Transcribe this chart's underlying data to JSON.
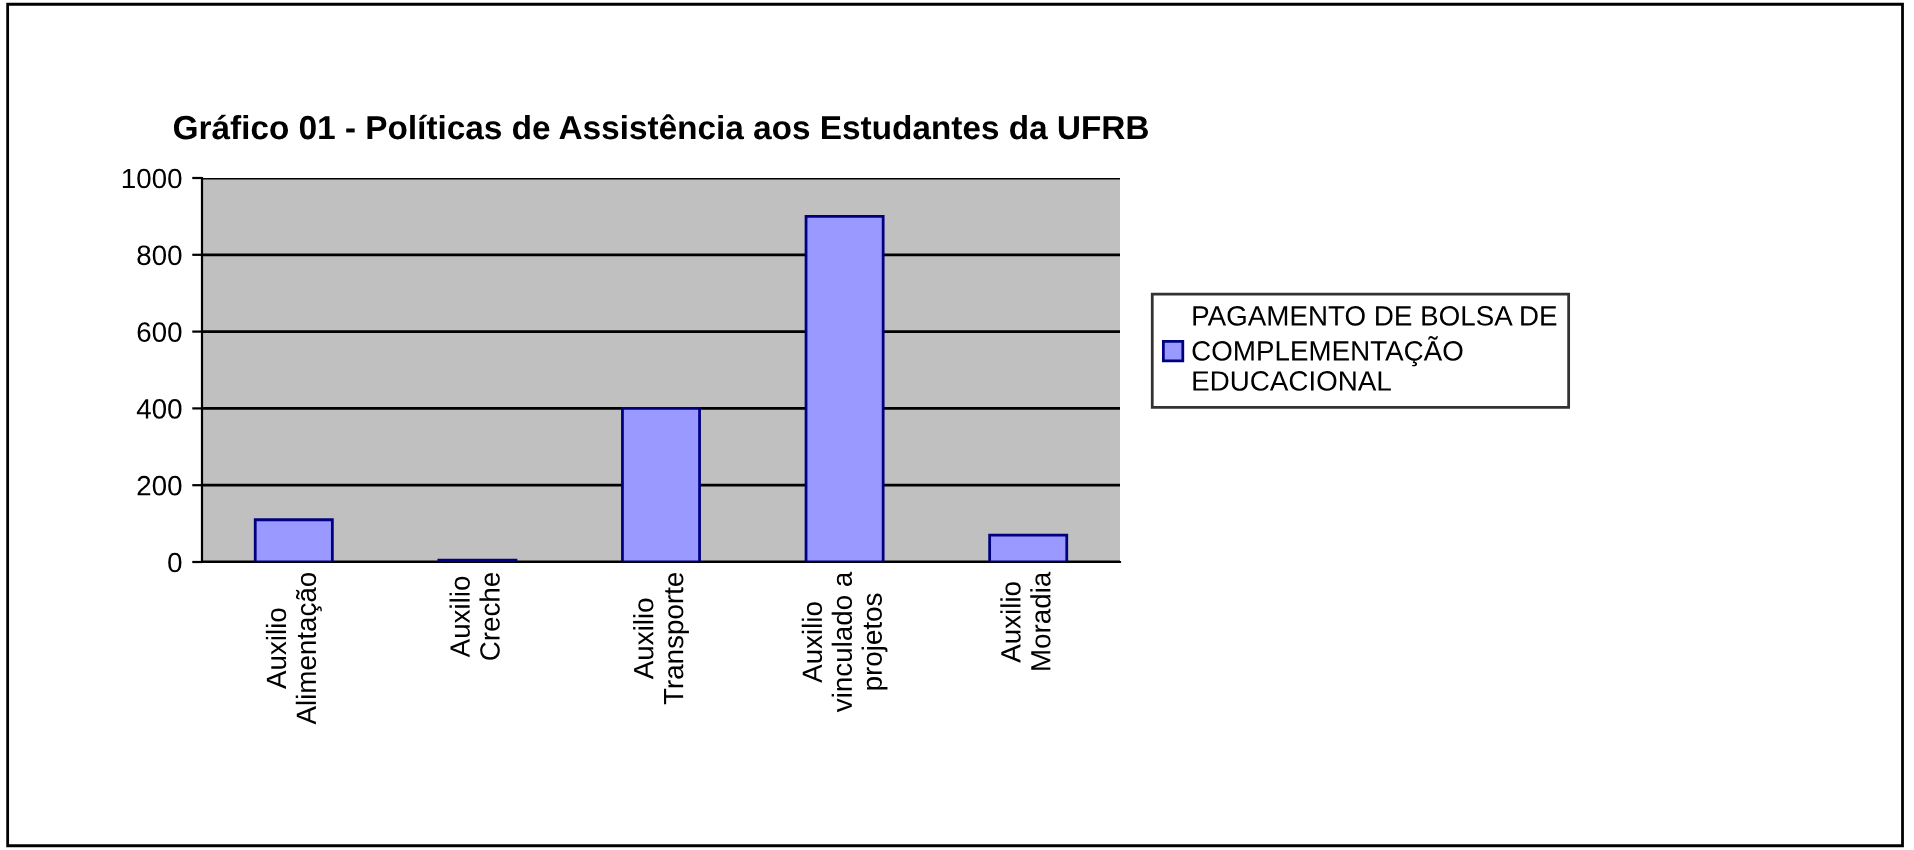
{
  "chart_data": {
    "type": "bar",
    "title": "Gráfico 01 - Políticas de Assistência aos Estudantes da UFRB",
    "categories": [
      "Auxilio\nAlimentação",
      "Auxilio\nCreche",
      "Auxilio\nTransporte",
      "Auxilio\nvinculado a\nprojetos",
      "Auxilio\nMoradia"
    ],
    "series": [
      {
        "name": "PAGAMENTO DE BOLSA DE\nCOMPLEMENTAÇÃO\nEDUCACIONAL",
        "color": "#9999ff",
        "values": [
          110,
          5,
          400,
          900,
          70
        ]
      }
    ],
    "ylim": [
      0,
      1000
    ],
    "yticks": [
      0,
      200,
      400,
      600,
      800,
      1000
    ],
    "grid": "y",
    "legend": "right"
  }
}
